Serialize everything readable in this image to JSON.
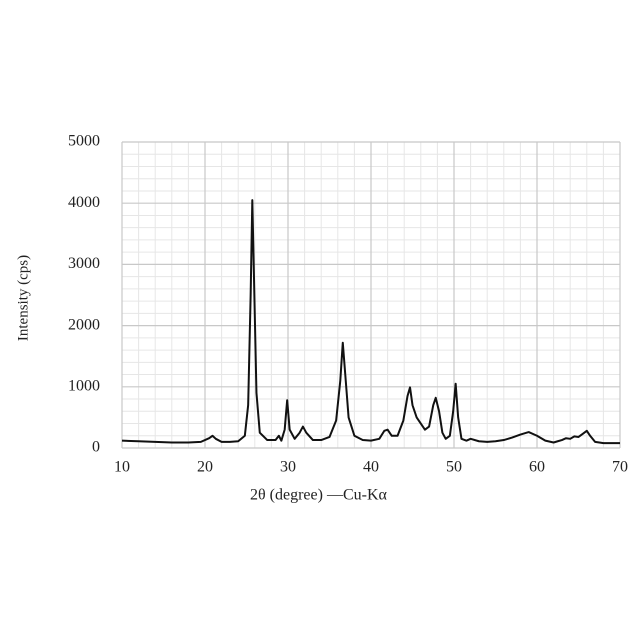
{
  "chart_data": {
    "type": "line",
    "xlabel": "2θ (degree) —Cu-Kα",
    "ylabel": "Intensity (cps)",
    "xlim": [
      10,
      70
    ],
    "ylim": [
      0,
      5000
    ],
    "xticks": [
      10,
      20,
      30,
      40,
      50,
      60,
      70
    ],
    "yticks": [
      0,
      1000,
      2000,
      3000,
      4000,
      5000
    ],
    "xminorticks": [
      12,
      14,
      16,
      18,
      22,
      24,
      26,
      28,
      32,
      34,
      36,
      38,
      42,
      44,
      46,
      48,
      52,
      54,
      56,
      58,
      62,
      64,
      66,
      68
    ],
    "yminorticks": [
      200,
      400,
      600,
      800,
      1200,
      1400,
      1600,
      1800,
      2200,
      2400,
      2600,
      2800,
      3200,
      3400,
      3600,
      3800,
      4200,
      4400,
      4600,
      4800
    ],
    "grid": true,
    "series": [
      {
        "color": "#111111",
        "x": [
          10,
          12,
          14,
          16,
          18,
          19.5,
          20.5,
          20.9,
          21.3,
          22,
          23,
          24,
          24.8,
          25.2,
          25.5,
          25.7,
          25.9,
          26.2,
          26.6,
          27.5,
          28.5,
          28.9,
          29.2,
          29.6,
          29.9,
          30.2,
          30.8,
          31.4,
          31.8,
          32.2,
          33,
          34,
          35,
          35.8,
          36.3,
          36.6,
          36.9,
          37.3,
          38,
          39,
          40,
          41,
          41.6,
          42,
          42.5,
          43.2,
          43.9,
          44.4,
          44.7,
          45,
          45.5,
          46,
          46.5,
          47,
          47.5,
          47.8,
          48.2,
          48.6,
          49,
          49.5,
          49.9,
          50.2,
          50.5,
          50.9,
          51.5,
          52,
          53,
          54,
          55,
          56,
          57,
          58,
          59,
          60,
          61,
          62,
          62.5,
          63,
          63.5,
          64,
          64.5,
          65,
          65.5,
          66,
          66.4,
          67,
          68,
          69,
          70
        ],
        "values": [
          120,
          110,
          100,
          90,
          90,
          100,
          160,
          200,
          150,
          100,
          100,
          110,
          200,
          700,
          2500,
          4050,
          2800,
          900,
          250,
          130,
          130,
          200,
          120,
          300,
          780,
          300,
          150,
          250,
          350,
          250,
          130,
          130,
          180,
          450,
          1100,
          1720,
          1200,
          500,
          200,
          130,
          120,
          150,
          280,
          300,
          200,
          200,
          450,
          850,
          990,
          700,
          500,
          400,
          300,
          350,
          700,
          820,
          600,
          250,
          150,
          200,
          600,
          1050,
          500,
          150,
          120,
          150,
          110,
          100,
          110,
          130,
          170,
          220,
          260,
          200,
          120,
          90,
          110,
          130,
          160,
          150,
          190,
          180,
          230,
          280,
          200,
          100,
          80,
          80,
          80
        ]
      }
    ]
  }
}
